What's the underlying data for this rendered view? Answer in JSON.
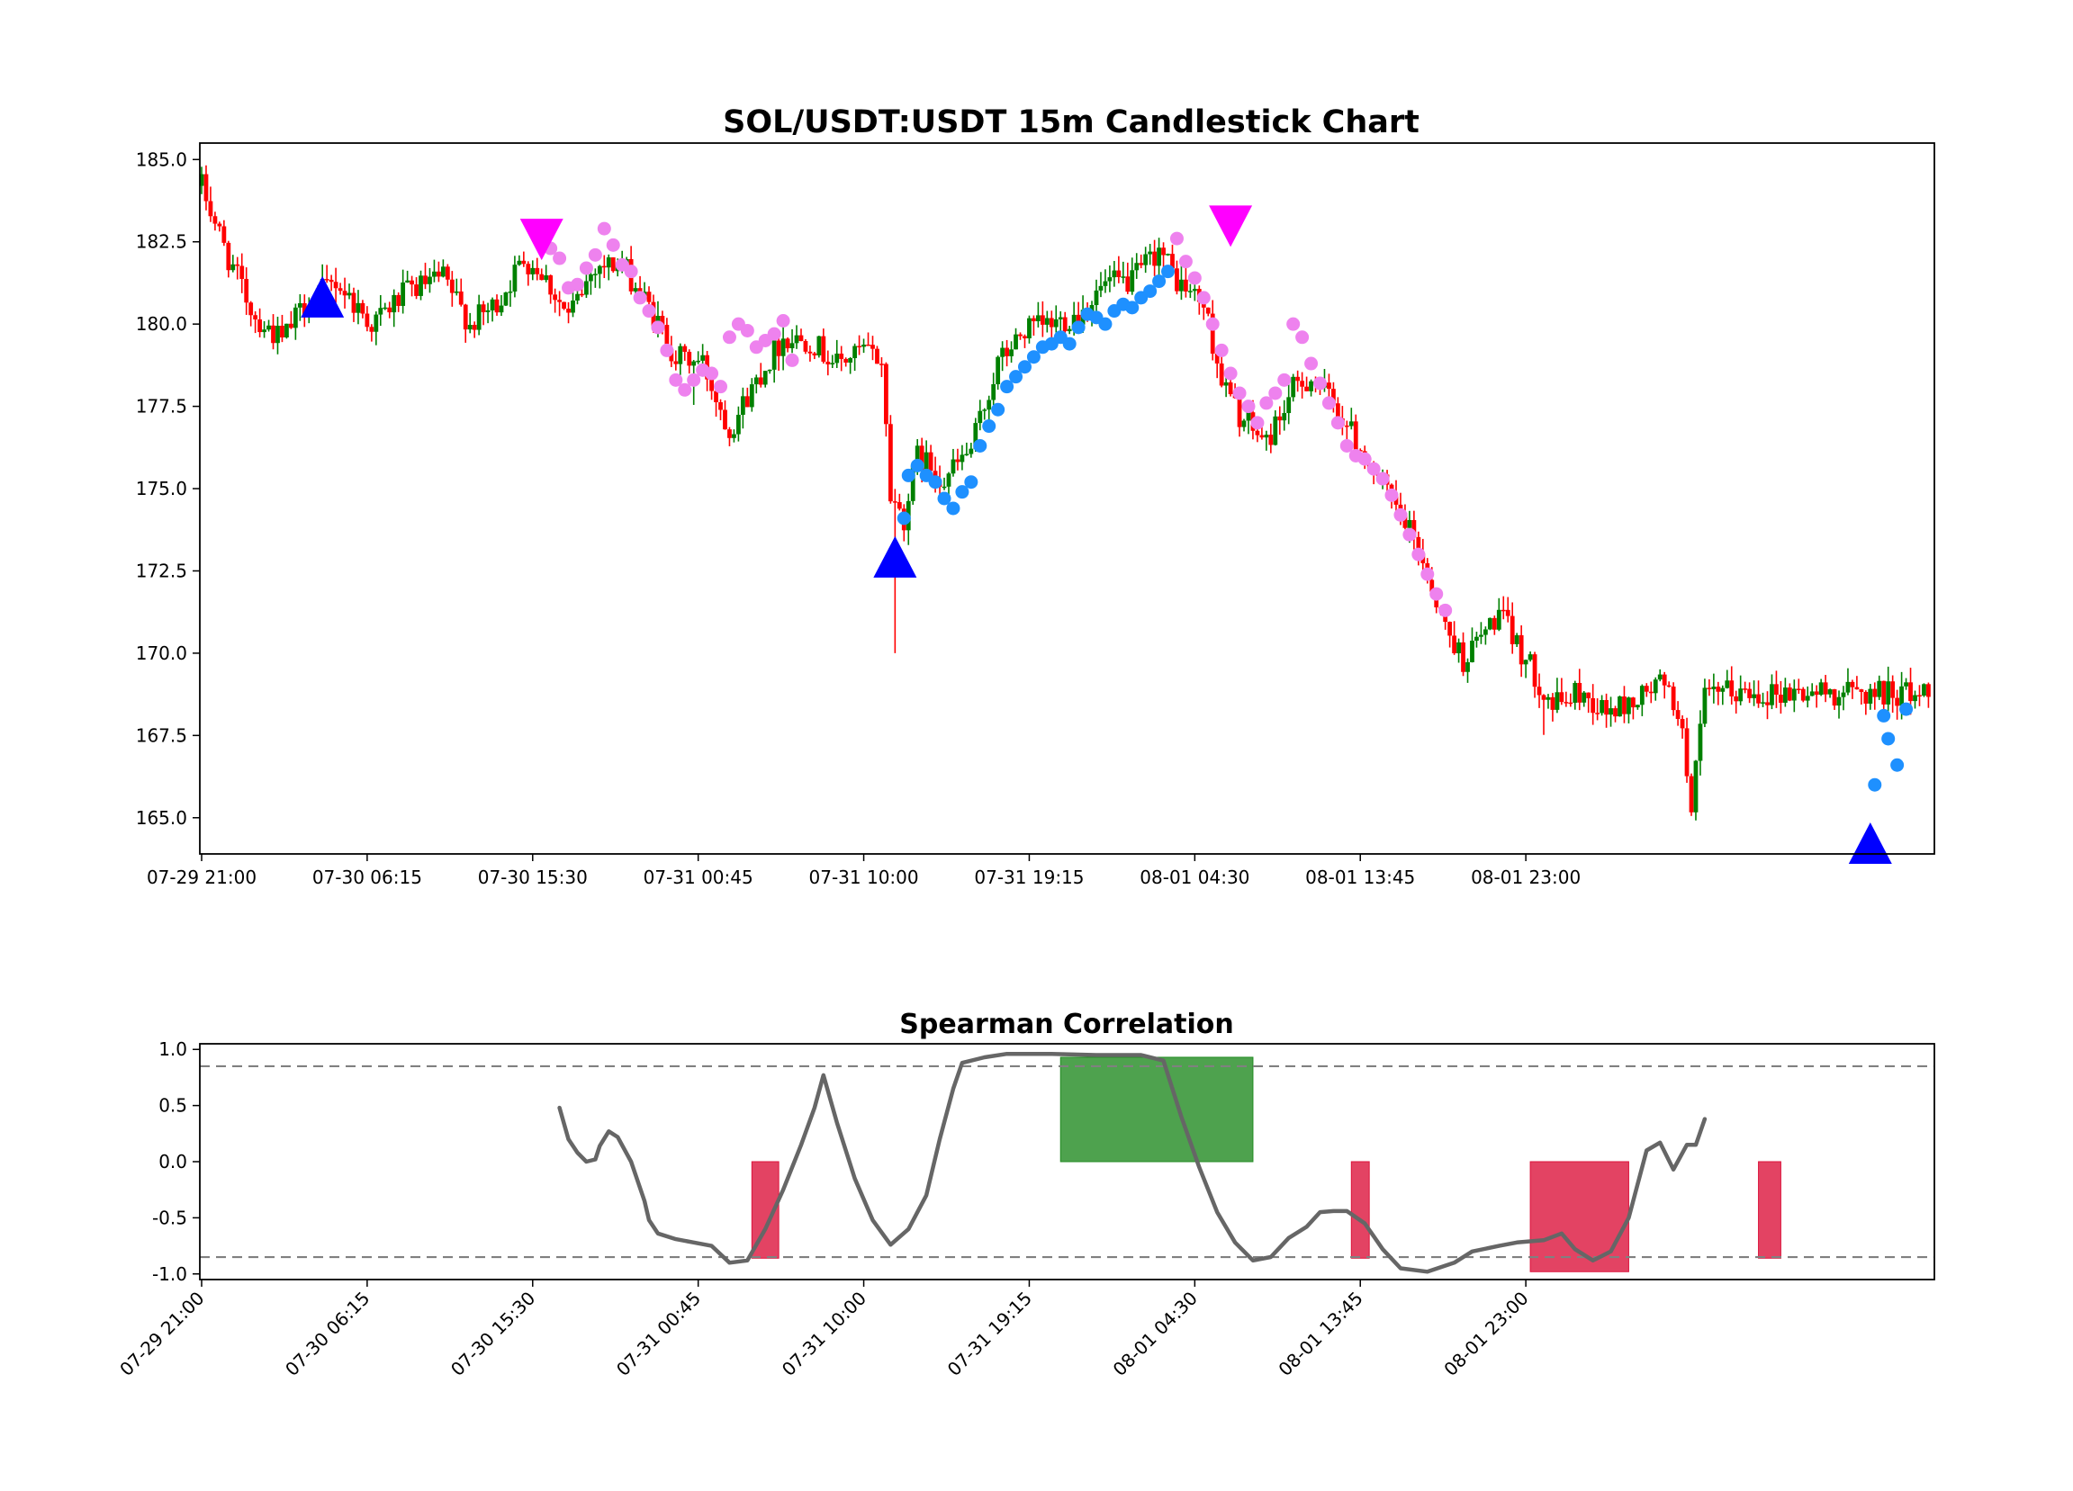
{
  "chart_data": [
    {
      "type": "candlestick",
      "title": "SOL/USDT:USDT 15m Candlestick Chart",
      "xlabel": "",
      "ylabel": "",
      "x_range": [
        "07-29 21:00",
        "08-01 23:15"
      ],
      "ylim": [
        163.9,
        185.5
      ],
      "ytick_values": [
        165.0,
        167.5,
        170.0,
        172.5,
        175.0,
        177.5,
        180.0,
        182.5,
        185.0
      ],
      "ytick_labels": [
        "165.0",
        "167.5",
        "170.0",
        "172.5",
        "175.0",
        "177.5",
        "180.0",
        "182.5",
        "185.0"
      ],
      "xtick_labels": [
        "07-29 21:00",
        "07-30 06:15",
        "07-30 15:30",
        "07-31 00:45",
        "07-31 10:00",
        "07-31 19:15",
        "08-01 04:30",
        "08-01 13:45",
        "08-01 23:00"
      ],
      "up_color": "#008000",
      "down_color": "#ff0000",
      "close_path": [
        [
          0,
          184.2
        ],
        [
          6,
          182.0
        ],
        [
          12,
          180.2
        ],
        [
          18,
          179.5
        ],
        [
          23,
          180.6
        ],
        [
          30,
          181.3
        ],
        [
          38,
          180.0
        ],
        [
          46,
          181.0
        ],
        [
          54,
          181.4
        ],
        [
          60,
          180.0
        ],
        [
          66,
          180.6
        ],
        [
          72,
          182.0
        ],
        [
          76,
          181.6
        ],
        [
          82,
          180.2
        ],
        [
          88,
          181.8
        ],
        [
          94,
          181.8
        ],
        [
          100,
          180.5
        ],
        [
          106,
          179.0
        ],
        [
          112,
          178.8
        ],
        [
          118,
          176.8
        ],
        [
          124,
          178.3
        ],
        [
          130,
          179.6
        ],
        [
          136,
          179.5
        ],
        [
          142,
          178.8
        ],
        [
          148,
          179.2
        ],
        [
          152,
          178.9
        ],
        [
          154,
          174.8
        ],
        [
          157,
          174.1
        ],
        [
          160,
          176.0
        ],
        [
          166,
          175.3
        ],
        [
          172,
          176.2
        ],
        [
          178,
          178.8
        ],
        [
          184,
          179.8
        ],
        [
          190,
          180.0
        ],
        [
          196,
          180.3
        ],
        [
          202,
          181.2
        ],
        [
          208,
          181.3
        ],
        [
          214,
          182.3
        ],
        [
          218,
          181.3
        ],
        [
          224,
          180.6
        ],
        [
          228,
          178.3
        ],
        [
          232,
          177.2
        ],
        [
          238,
          176.4
        ],
        [
          244,
          178.0
        ],
        [
          248,
          178.4
        ],
        [
          254,
          177.4
        ],
        [
          260,
          176.0
        ],
        [
          266,
          174.6
        ],
        [
          272,
          173.2
        ],
        [
          278,
          170.8
        ],
        [
          282,
          169.8
        ],
        [
          290,
          171.2
        ],
        [
          296,
          169.8
        ],
        [
          302,
          168.4
        ],
        [
          308,
          168.8
        ],
        [
          314,
          168.2
        ],
        [
          320,
          168.5
        ],
        [
          326,
          169.1
        ],
        [
          330,
          168.3
        ],
        [
          333,
          165.5
        ],
        [
          336,
          168.6
        ],
        [
          340,
          168.8
        ]
      ],
      "markers": {
        "buy_triangles": [
          [
            27,
            180.8
          ],
          [
            155,
            172.9
          ],
          [
            373,
            164.2
          ]
        ],
        "sell_triangles": [
          [
            76,
            182.6
          ],
          [
            230,
            183.0
          ]
        ],
        "long_dots_color": "#1e90ff",
        "short_dots_color": "#ee82ee",
        "long_dots": [
          [
            157,
            174.1
          ],
          [
            158,
            175.4
          ],
          [
            160,
            175.7
          ],
          [
            162,
            175.4
          ],
          [
            164,
            175.2
          ],
          [
            166,
            174.7
          ],
          [
            168,
            174.4
          ],
          [
            170,
            174.9
          ],
          [
            172,
            175.2
          ],
          [
            174,
            176.3
          ],
          [
            176,
            176.9
          ],
          [
            178,
            177.4
          ],
          [
            180,
            178.1
          ],
          [
            182,
            178.4
          ],
          [
            184,
            178.7
          ],
          [
            186,
            179.0
          ],
          [
            188,
            179.3
          ],
          [
            190,
            179.4
          ],
          [
            192,
            179.6
          ],
          [
            194,
            179.4
          ],
          [
            196,
            179.9
          ],
          [
            198,
            180.3
          ],
          [
            200,
            180.2
          ],
          [
            202,
            180.0
          ],
          [
            204,
            180.4
          ],
          [
            206,
            180.6
          ],
          [
            208,
            180.5
          ],
          [
            210,
            180.8
          ],
          [
            212,
            181.0
          ],
          [
            214,
            181.3
          ],
          [
            216,
            181.6
          ],
          [
            374,
            166.0
          ],
          [
            376,
            168.1
          ],
          [
            377,
            167.4
          ],
          [
            379,
            166.6
          ],
          [
            381,
            168.3
          ]
        ],
        "short_dots": [
          [
            78,
            182.3
          ],
          [
            80,
            182.0
          ],
          [
            82,
            181.1
          ],
          [
            84,
            181.2
          ],
          [
            86,
            181.7
          ],
          [
            88,
            182.1
          ],
          [
            90,
            182.9
          ],
          [
            92,
            182.4
          ],
          [
            94,
            181.8
          ],
          [
            96,
            181.6
          ],
          [
            98,
            180.8
          ],
          [
            100,
            180.4
          ],
          [
            102,
            179.9
          ],
          [
            104,
            179.2
          ],
          [
            106,
            178.3
          ],
          [
            108,
            178.0
          ],
          [
            110,
            178.3
          ],
          [
            112,
            178.6
          ],
          [
            114,
            178.5
          ],
          [
            116,
            178.1
          ],
          [
            118,
            179.6
          ],
          [
            120,
            180.0
          ],
          [
            122,
            179.8
          ],
          [
            124,
            179.3
          ],
          [
            126,
            179.5
          ],
          [
            128,
            179.7
          ],
          [
            130,
            180.1
          ],
          [
            132,
            178.9
          ],
          [
            218,
            182.6
          ],
          [
            220,
            181.9
          ],
          [
            222,
            181.4
          ],
          [
            224,
            180.8
          ],
          [
            226,
            180.0
          ],
          [
            228,
            179.2
          ],
          [
            230,
            178.5
          ],
          [
            232,
            177.9
          ],
          [
            234,
            177.5
          ],
          [
            236,
            177.0
          ],
          [
            238,
            177.6
          ],
          [
            240,
            177.9
          ],
          [
            242,
            178.3
          ],
          [
            244,
            180.0
          ],
          [
            246,
            179.6
          ],
          [
            248,
            178.8
          ],
          [
            250,
            178.2
          ],
          [
            252,
            177.6
          ],
          [
            254,
            177.0
          ],
          [
            256,
            176.3
          ],
          [
            258,
            176.0
          ],
          [
            260,
            175.9
          ],
          [
            262,
            175.6
          ],
          [
            264,
            175.3
          ],
          [
            266,
            174.8
          ],
          [
            268,
            174.2
          ],
          [
            270,
            173.6
          ],
          [
            272,
            173.0
          ],
          [
            274,
            172.4
          ],
          [
            276,
            171.8
          ],
          [
            278,
            171.3
          ]
        ]
      }
    },
    {
      "type": "line",
      "title": "Spearman Correlation",
      "xlabel": "",
      "ylabel": "",
      "ylim": [
        -1.05,
        1.05
      ],
      "ytick_values": [
        -1.0,
        -0.5,
        0.0,
        0.5,
        1.0
      ],
      "ytick_labels": [
        "-1.0",
        "-0.5",
        "0.0",
        "0.5",
        "1.0"
      ],
      "xtick_labels": [
        "07-29 21:00",
        "07-30 06:15",
        "07-30 15:30",
        "07-31 00:45",
        "07-31 10:00",
        "07-31 19:15",
        "08-01 04:30",
        "08-01 13:45",
        "08-01 23:00"
      ],
      "thresholds": [
        0.85,
        -0.85
      ],
      "line_color": "#666666",
      "x_start": 80,
      "values": [
        [
          80,
          0.48
        ],
        [
          82,
          0.2
        ],
        [
          84,
          0.08
        ],
        [
          86,
          0.0
        ],
        [
          88,
          0.02
        ],
        [
          89,
          0.14
        ],
        [
          91,
          0.27
        ],
        [
          93,
          0.22
        ],
        [
          96,
          0.0
        ],
        [
          99,
          -0.35
        ],
        [
          100,
          -0.52
        ],
        [
          102,
          -0.64
        ],
        [
          106,
          -0.69
        ],
        [
          110,
          -0.72
        ],
        [
          114,
          -0.75
        ],
        [
          118,
          -0.9
        ],
        [
          122,
          -0.88
        ],
        [
          126,
          -0.6
        ],
        [
          130,
          -0.25
        ],
        [
          134,
          0.15
        ],
        [
          137,
          0.48
        ],
        [
          139,
          0.77
        ],
        [
          142,
          0.35
        ],
        [
          146,
          -0.15
        ],
        [
          150,
          -0.52
        ],
        [
          154,
          -0.74
        ],
        [
          158,
          -0.6
        ],
        [
          162,
          -0.3
        ],
        [
          165,
          0.2
        ],
        [
          168,
          0.65
        ],
        [
          170,
          0.88
        ],
        [
          175,
          0.93
        ],
        [
          180,
          0.96
        ],
        [
          190,
          0.96
        ],
        [
          200,
          0.95
        ],
        [
          210,
          0.95
        ],
        [
          215,
          0.9
        ],
        [
          219,
          0.4
        ],
        [
          223,
          -0.05
        ],
        [
          227,
          -0.45
        ],
        [
          231,
          -0.72
        ],
        [
          235,
          -0.88
        ],
        [
          239,
          -0.85
        ],
        [
          243,
          -0.68
        ],
        [
          247,
          -0.58
        ],
        [
          250,
          -0.45
        ],
        [
          253,
          -0.44
        ],
        [
          256,
          -0.44
        ],
        [
          260,
          -0.55
        ],
        [
          264,
          -0.78
        ],
        [
          268,
          -0.95
        ],
        [
          274,
          -0.98
        ],
        [
          280,
          -0.9
        ],
        [
          284,
          -0.8
        ],
        [
          290,
          -0.75
        ],
        [
          294,
          -0.72
        ],
        [
          300,
          -0.7
        ],
        [
          304,
          -0.64
        ],
        [
          307,
          -0.78
        ],
        [
          311,
          -0.88
        ],
        [
          315,
          -0.8
        ],
        [
          319,
          -0.5
        ],
        [
          323,
          0.1
        ],
        [
          326,
          0.17
        ],
        [
          329,
          -0.07
        ],
        [
          332,
          0.15
        ],
        [
          334,
          0.15
        ],
        [
          336,
          0.38
        ]
      ],
      "bars": [
        {
          "x0": 123,
          "x1": 129,
          "y": -0.86,
          "color": "#dc143c"
        },
        {
          "x0": 192,
          "x1": 235,
          "y": 0.93,
          "color": "#228b22"
        },
        {
          "x0": 257,
          "x1": 261,
          "y": -0.86,
          "color": "#dc143c"
        },
        {
          "x0": 297,
          "x1": 319,
          "y": -0.98,
          "color": "#dc143c"
        },
        {
          "x0": 348,
          "x1": 353,
          "y": -0.86,
          "color": "#dc143c"
        }
      ]
    }
  ]
}
